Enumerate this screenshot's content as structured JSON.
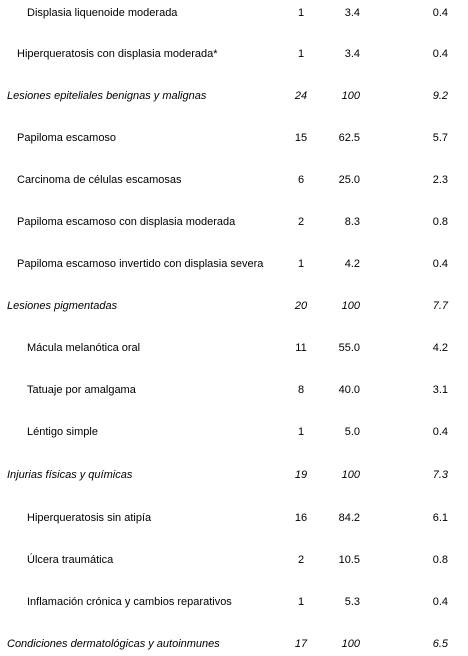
{
  "rows": [
    {
      "label": "Displasia liquenoide moderada",
      "n": "1",
      "pct": "3.4",
      "total": "0.4",
      "level": 2,
      "italic": false
    },
    {
      "label": "Hiperqueratosis con displasia moderada*",
      "n": "1",
      "pct": "3.4",
      "total": "0.4",
      "level": 1,
      "italic": false
    },
    {
      "label": "Lesiones epiteliales benignas y malignas",
      "n": "24",
      "pct": "100",
      "total": "9.2",
      "level": 0,
      "italic": true
    },
    {
      "label": "Papiloma escamoso",
      "n": "15",
      "pct": "62.5",
      "total": "5.7",
      "level": 1,
      "italic": false
    },
    {
      "label": "Carcinoma de células escamosas",
      "n": "6",
      "pct": "25.0",
      "total": "2.3",
      "level": 1,
      "italic": false
    },
    {
      "label": "Papiloma escamoso con displasia moderada",
      "n": "2",
      "pct": "8.3",
      "total": "0.8",
      "level": 1,
      "italic": false
    },
    {
      "label": "Papiloma escamoso invertido con displasia severa",
      "n": "1",
      "pct": "4.2",
      "total": "0.4",
      "level": 1,
      "italic": false
    },
    {
      "label": "Lesiones pigmentadas",
      "n": "20",
      "pct": "100",
      "total": "7.7",
      "level": 0,
      "italic": true
    },
    {
      "label": "Mácula melanótica oral",
      "n": "11",
      "pct": "55.0",
      "total": "4.2",
      "level": 2,
      "italic": false
    },
    {
      "label": "Tatuaje por amalgama",
      "n": "8",
      "pct": "40.0",
      "total": "3.1",
      "level": 2,
      "italic": false
    },
    {
      "label": "Léntigo simple",
      "n": "1",
      "pct": "5.0",
      "total": "0.4",
      "level": 2,
      "italic": false
    },
    {
      "label": "Injurias físicas y químicas",
      "n": "19",
      "pct": "100",
      "total": "7.3",
      "level": 0,
      "italic": true
    },
    {
      "label": "Hiperqueratosis sin atipía",
      "n": "16",
      "pct": "84.2",
      "total": "6.1",
      "level": 2,
      "italic": false
    },
    {
      "label": "Úlcera traumática",
      "n": "2",
      "pct": "10.5",
      "total": "0.8",
      "level": 2,
      "italic": false
    },
    {
      "label": "Inflamación crónica y cambios reparativos",
      "n": "1",
      "pct": "5.3",
      "total": "0.4",
      "level": 2,
      "italic": false
    },
    {
      "label": "Condiciones dermatológicas y autoinmunes",
      "n": "17",
      "pct": "100",
      "total": "6.5",
      "level": 0,
      "italic": true
    }
  ]
}
